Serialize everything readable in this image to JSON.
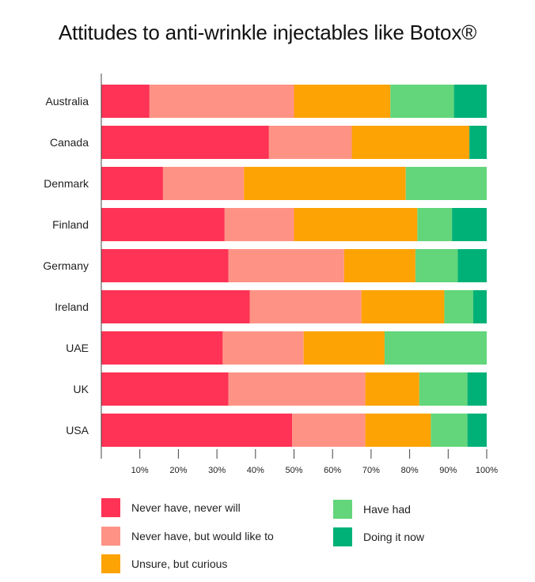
{
  "chart_data": {
    "type": "bar",
    "orientation": "horizontal",
    "stacked": true,
    "title": "Attitudes to anti-wrinkle injectables like Botox®",
    "xlabel": "",
    "ylabel": "",
    "xlim": [
      0,
      100
    ],
    "x_ticks": [
      "10%",
      "20%",
      "30%",
      "40%",
      "50%",
      "60%",
      "70%",
      "80%",
      "90%",
      "100%"
    ],
    "categories": [
      "Australia",
      "Canada",
      "Denmark",
      "Finland",
      "Germany",
      "Ireland",
      "UAE",
      "UK",
      "USA"
    ],
    "series": [
      {
        "name": "Never have, never will",
        "color": "#fe3355",
        "values": [
          12.5,
          43.5,
          16,
          32,
          33,
          38.5,
          31.5,
          33,
          49.5
        ]
      },
      {
        "name": "Never have, but would like to",
        "color": "#fe9385",
        "values": [
          37.5,
          21.5,
          21,
          18,
          30,
          29,
          21,
          35.5,
          19
        ]
      },
      {
        "name": "Unsure, but curious",
        "color": "#fea304",
        "values": [
          25,
          30.5,
          42,
          32,
          18.5,
          21.5,
          21,
          14,
          17
        ]
      },
      {
        "name": "Have had",
        "color": "#63d57b",
        "values": [
          16.5,
          0,
          21,
          9,
          11,
          7.5,
          26.5,
          12.5,
          9.5
        ]
      },
      {
        "name": "Doing it now",
        "color": "#00b177",
        "values": [
          8.5,
          4.5,
          0,
          9,
          7.5,
          3.5,
          0,
          5,
          5
        ]
      }
    ],
    "legend": {
      "position": "bottom",
      "columns": 2
    },
    "grid": false
  }
}
